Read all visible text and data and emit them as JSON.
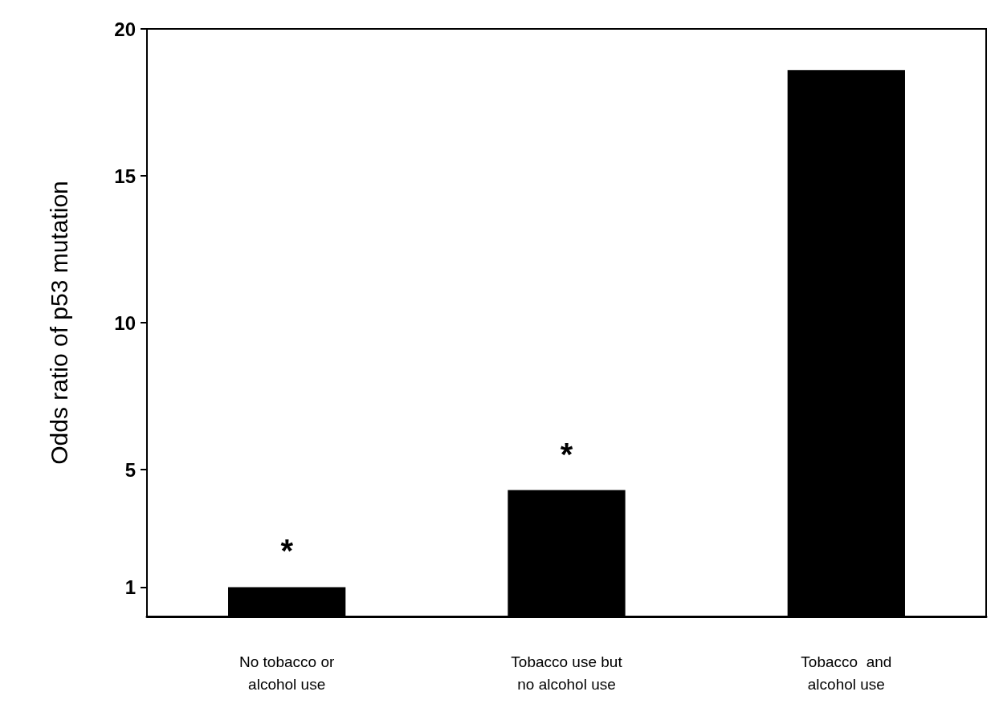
{
  "chart_data": {
    "type": "bar",
    "ylabel": "Odds ratio of p53 mutation",
    "categories": [
      "No tobacco or\nalcohol use",
      "Tobacco use but\nno alcohol use",
      "Tobacco  and\nalcohol use"
    ],
    "values": [
      1,
      4.3,
      18.6
    ],
    "color": "#000000",
    "ylim": [
      0,
      20
    ],
    "yticks": [
      1,
      5,
      10,
      15,
      20
    ],
    "grid": false,
    "annotations": [
      "*",
      "*"
    ]
  }
}
